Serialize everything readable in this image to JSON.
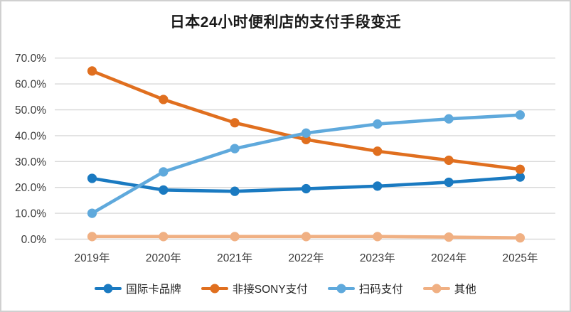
{
  "window": {
    "background": "#ffffff",
    "border_color": "#d0d0d0"
  },
  "colors": {
    "gridline": "#d9d9d9",
    "axis_text": "#3b3b3b",
    "title_text": "#1a1a1a"
  },
  "chart_data": {
    "type": "line",
    "title": "日本24小时便利店的支付手段变迁",
    "xlabel": "",
    "ylabel": "",
    "categories": [
      "2019年",
      "2020年",
      "2021年",
      "2022年",
      "2023年",
      "2024年",
      "2025年"
    ],
    "series": [
      {
        "id": "intl-card",
        "name": "国际卡品牌",
        "color": "#1a7ac1",
        "values": [
          23.5,
          19.0,
          18.5,
          19.5,
          20.5,
          22.0,
          24.0
        ]
      },
      {
        "id": "contactless-sony",
        "name": "非接SONY支付",
        "color": "#e06f1f",
        "values": [
          65.0,
          54.0,
          45.0,
          38.5,
          34.0,
          30.5,
          27.0
        ]
      },
      {
        "id": "qr-pay",
        "name": "扫码支付",
        "color": "#5fa9dc",
        "values": [
          10.0,
          26.0,
          35.0,
          41.0,
          44.5,
          46.5,
          48.0
        ]
      },
      {
        "id": "other",
        "name": "其他",
        "color": "#f0b083",
        "values": [
          1.0,
          1.0,
          1.0,
          1.0,
          1.0,
          0.8,
          0.5
        ]
      }
    ],
    "y_ticks": [
      "0.0%",
      "10.0%",
      "20.0%",
      "30.0%",
      "40.0%",
      "50.0%",
      "60.0%",
      "70.0%"
    ],
    "ylim": [
      0,
      70
    ],
    "y_tick_step": 10,
    "grid": true,
    "legend_position": "bottom"
  }
}
